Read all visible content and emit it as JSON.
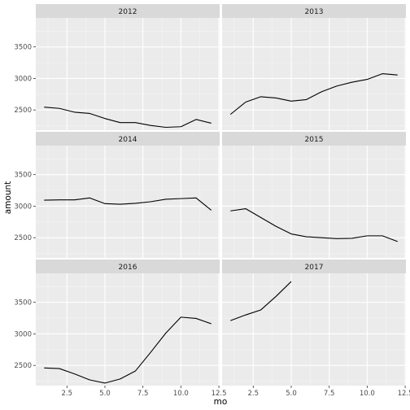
{
  "chart_data": {
    "type": "line",
    "xlabel": "mo",
    "ylabel": "amount",
    "xlim": [
      0.45,
      12.55
    ],
    "ylim": [
      2180,
      3960
    ],
    "x_ticks": [
      2.5,
      5.0,
      7.5,
      10.0,
      12.5
    ],
    "x_tick_labels": [
      "2.5",
      "5.0",
      "7.5",
      "10.0",
      "12.5"
    ],
    "y_ticks": [
      2500,
      3000,
      3500
    ],
    "y_tick_labels": [
      "2500",
      "3000",
      "3500"
    ],
    "grid": true,
    "layout": "facet_wrap 3 rows x 2 columns, shared axes",
    "colors": {
      "panel_bg": "#ebebeb",
      "strip_bg": "#d9d9d9",
      "grid_major": "#ffffff",
      "line": "#000000"
    },
    "facets": [
      {
        "label": "2012",
        "x": [
          1,
          2,
          3,
          4,
          5,
          6,
          7,
          8,
          9,
          10,
          11,
          12
        ],
        "y": [
          2545,
          2525,
          2465,
          2445,
          2365,
          2300,
          2300,
          2255,
          2225,
          2235,
          2350,
          2290
        ]
      },
      {
        "label": "2013",
        "x": [
          1,
          2,
          3,
          4,
          5,
          6,
          7,
          8,
          9,
          10,
          11,
          12
        ],
        "y": [
          2430,
          2625,
          2710,
          2690,
          2640,
          2665,
          2790,
          2880,
          2940,
          2985,
          3075,
          3055
        ]
      },
      {
        "label": "2014",
        "x": [
          1,
          2,
          3,
          4,
          5,
          6,
          7,
          8,
          9,
          10,
          11,
          12
        ],
        "y": [
          3095,
          3100,
          3100,
          3130,
          3040,
          3030,
          3045,
          3070,
          3110,
          3120,
          3130,
          2935
        ]
      },
      {
        "label": "2015",
        "x": [
          1,
          2,
          3,
          4,
          5,
          6,
          7,
          8,
          9,
          10,
          11,
          12
        ],
        "y": [
          2925,
          2960,
          2820,
          2680,
          2560,
          2515,
          2500,
          2485,
          2490,
          2530,
          2530,
          2440
        ]
      },
      {
        "label": "2016",
        "x": [
          1,
          2,
          3,
          4,
          5,
          6,
          7,
          8,
          9,
          10,
          11,
          12
        ],
        "y": [
          2460,
          2450,
          2365,
          2270,
          2220,
          2285,
          2410,
          2705,
          3010,
          3265,
          3245,
          3160
        ]
      },
      {
        "label": "2017",
        "x": [
          1,
          2,
          3,
          4,
          5
        ],
        "y": [
          3210,
          3300,
          3380,
          3595,
          3830
        ]
      }
    ]
  }
}
